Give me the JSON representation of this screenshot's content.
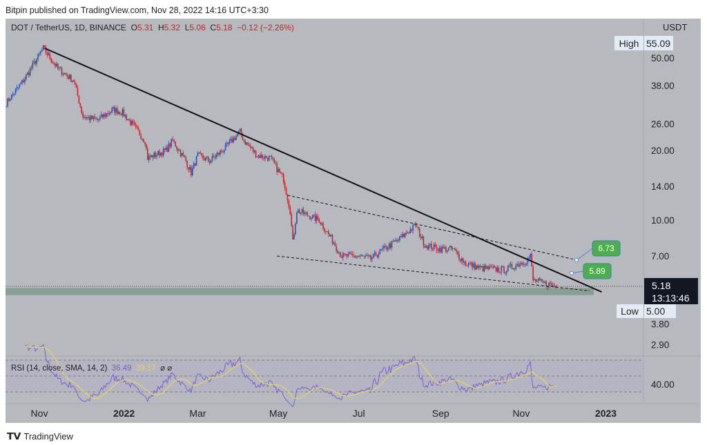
{
  "header": {
    "published": "Bitpin published on TradingView.com, Nov 28, 2022 14:16 UTC+3:30"
  },
  "legend": {
    "symbol": "DOT / TetherUS, 1D, BINANCE",
    "o_label": "O",
    "o": "5.31",
    "h_label": "H",
    "h": "5.32",
    "l_label": "L",
    "l": "5.06",
    "c_label": "C",
    "c": "5.18",
    "change": "−0.12 (−2.26%)"
  },
  "rsi_legend": {
    "title": "RSI (14, close, SMA, 14, 2)",
    "rsi": "36.49",
    "sma": "39.17",
    "extra": "⌀ ⌀"
  },
  "footer": {
    "brand": "TradingView"
  },
  "colors": {
    "up": "#2d4fa8",
    "down": "#c0272d",
    "rsi": "#7a5fd0",
    "sma": "#e6d36a",
    "tag": "#4cae4c"
  },
  "chart_data": {
    "type": "candlestick",
    "scale": "log",
    "currency": "USDT",
    "y_ticks": [
      "50.00",
      "38.00",
      "26.00",
      "20.00",
      "14.00",
      "10.00",
      "7.00",
      "3.80",
      "2.90"
    ],
    "y_tick_values": [
      50,
      38,
      26,
      20,
      14,
      10,
      7,
      3.8,
      2.9
    ],
    "x_ticks": [
      "Nov",
      "2022",
      "Mar",
      "May",
      "Jul",
      "Sep",
      "Nov",
      "2023"
    ],
    "x_tick_days": [
      0,
      61,
      120,
      181,
      242,
      304,
      365,
      426
    ],
    "high_label": "High",
    "high": "55.09",
    "low_label": "Low",
    "low": "5.00",
    "last_price": "5.18",
    "countdown": "13:13:46",
    "rsi_level_label": "40.00",
    "annotations": [
      {
        "text": "6.73",
        "price": 6.73
      },
      {
        "text": "5.89",
        "price": 5.89
      }
    ],
    "close_waypoints_day_price": [
      [
        -25,
        32
      ],
      [
        -12,
        40
      ],
      [
        3,
        55
      ],
      [
        14,
        45
      ],
      [
        26,
        40
      ],
      [
        33,
        28
      ],
      [
        44,
        27
      ],
      [
        56,
        30
      ],
      [
        63,
        29
      ],
      [
        70,
        26
      ],
      [
        80,
        22
      ],
      [
        82,
        18.5
      ],
      [
        96,
        20
      ],
      [
        101,
        22
      ],
      [
        111,
        18
      ],
      [
        115,
        16
      ],
      [
        120,
        19
      ],
      [
        129,
        18
      ],
      [
        139,
        20
      ],
      [
        152,
        24
      ],
      [
        155,
        22
      ],
      [
        165,
        19
      ],
      [
        175,
        18.5
      ],
      [
        185,
        15
      ],
      [
        190,
        11
      ],
      [
        192,
        8
      ],
      [
        195,
        11
      ],
      [
        212,
        10
      ],
      [
        223,
        8
      ],
      [
        229,
        7
      ],
      [
        242,
        7
      ],
      [
        251,
        6.8
      ],
      [
        261,
        7.5
      ],
      [
        273,
        8.3
      ],
      [
        285,
        9.5
      ],
      [
        292,
        7.8
      ],
      [
        304,
        7.5
      ],
      [
        313,
        7.5
      ],
      [
        323,
        6.5
      ],
      [
        334,
        6.2
      ],
      [
        353,
        6.1
      ],
      [
        369,
        6.7
      ],
      [
        372,
        7
      ],
      [
        374,
        5.5
      ],
      [
        384,
        5.3
      ],
      [
        392,
        5.18
      ]
    ],
    "trendlines": [
      {
        "style": "solid",
        "from": [
          4,
          55.09
        ],
        "to": [
          426,
          4.9
        ]
      },
      {
        "style": "dashed",
        "from": [
          188,
          12.8
        ],
        "to": [
          407,
          6.73
        ]
      },
      {
        "style": "dashed",
        "from": [
          180,
          7.0
        ],
        "to": [
          417,
          4.95
        ]
      }
    ],
    "support_zone": [
      4.75,
      5.1
    ]
  }
}
